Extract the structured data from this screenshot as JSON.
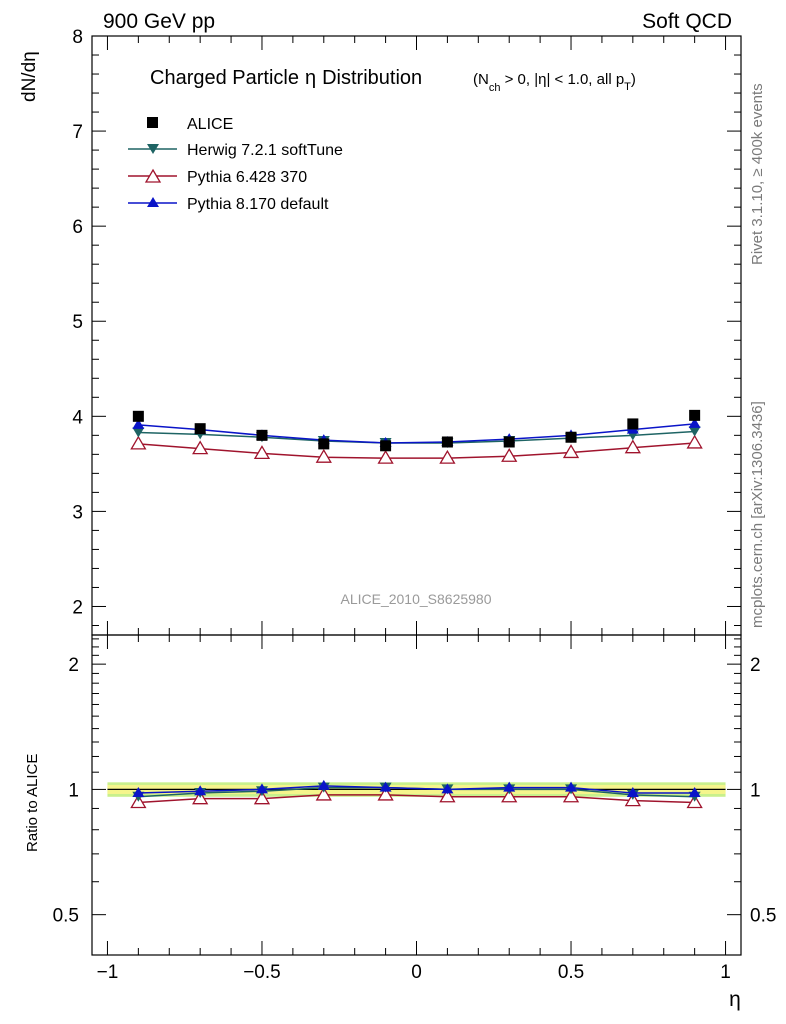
{
  "header": {
    "left": "900 GeV pp",
    "right": "Soft QCD"
  },
  "side_labels": {
    "rivet": "Rivet 3.1.10, ≥ 400k events",
    "mcplots": "mcplots.cern.ch [arXiv:1306.3436]"
  },
  "colors": {
    "ALICE": "#000000",
    "Herwig": "#1e6464",
    "Pythia6": "#a0142d",
    "Pythia8": "#0a14c8",
    "band_inner": "#f5f58c",
    "band_outer": "#c8f08c"
  },
  "chart_data": [
    {
      "id": "main",
      "type": "line",
      "title": "Charged Particle η Distribution",
      "subtitle": "(N_ch > 0, |η| < 1.0, all p_T)",
      "title_main": "Charged Particle",
      "title_eta": "η",
      "title_rest": "Distribution",
      "cut_open": "(N",
      "cut_sub_ch": "ch",
      "cut_mid": " > 0, |η| < 1.0, all p",
      "cut_sub_T": "T",
      "cut_close": ")",
      "xlabel": "η",
      "ylabel": "dN/dη",
      "xlim": [
        -1.05,
        1.05
      ],
      "ylim": [
        1.7,
        8.0
      ],
      "yticks": [
        2,
        3,
        4,
        5,
        6,
        7,
        8
      ],
      "watermark": "ALICE_2010_S8625980",
      "x": [
        -0.9,
        -0.7,
        -0.5,
        -0.3,
        -0.1,
        0.1,
        0.3,
        0.5,
        0.7,
        0.9
      ],
      "series": [
        {
          "name": "ALICE",
          "key": "ALICE",
          "marker": "square",
          "line": false,
          "values": [
            4.0,
            3.87,
            3.8,
            3.71,
            3.69,
            3.73,
            3.73,
            3.78,
            3.92,
            4.01
          ]
        },
        {
          "name": "Herwig 7.2.1 softTune",
          "key": "Herwig",
          "marker": "triangle-down",
          "line": true,
          "values": [
            3.83,
            3.81,
            3.78,
            3.74,
            3.72,
            3.72,
            3.74,
            3.77,
            3.8,
            3.84
          ]
        },
        {
          "name": "Pythia 6.428 370",
          "key": "Pythia6",
          "marker": "triangle-up-open",
          "line": true,
          "values": [
            3.71,
            3.66,
            3.61,
            3.57,
            3.56,
            3.56,
            3.58,
            3.62,
            3.67,
            3.72
          ]
        },
        {
          "name": "Pythia 8.170 default",
          "key": "Pythia8",
          "marker": "triangle-up",
          "line": true,
          "values": [
            3.91,
            3.86,
            3.8,
            3.75,
            3.72,
            3.73,
            3.76,
            3.8,
            3.86,
            3.92
          ]
        }
      ]
    },
    {
      "id": "ratio",
      "type": "line",
      "xlabel": "η",
      "ylabel": "Ratio to ALICE",
      "xlim": [
        -1.05,
        1.05
      ],
      "ylim": [
        0.4,
        2.35
      ],
      "yscale": "log",
      "yticks": [
        0.5,
        1,
        2
      ],
      "yticklabels": [
        "0.5",
        "1",
        "2"
      ],
      "xticks": [
        -1,
        -0.5,
        0,
        0.5,
        1
      ],
      "xticklabels": [
        "−1",
        "−0.5",
        "0",
        "0.5",
        "1"
      ],
      "band": {
        "inner": 0.025,
        "outer": 0.04
      },
      "x": [
        -0.9,
        -0.7,
        -0.5,
        -0.3,
        -0.1,
        0.1,
        0.3,
        0.5,
        0.7,
        0.9
      ],
      "series": [
        {
          "name": "Herwig 7.2.1 softTune",
          "key": "Herwig",
          "marker": "triangle-down",
          "values": [
            0.96,
            0.98,
            0.99,
            1.01,
            1.01,
            1.0,
            1.0,
            1.0,
            0.97,
            0.96
          ]
        },
        {
          "name": "Pythia 6.428 370",
          "key": "Pythia6",
          "marker": "triangle-up-open",
          "values": [
            0.93,
            0.95,
            0.95,
            0.97,
            0.97,
            0.96,
            0.96,
            0.96,
            0.94,
            0.93
          ]
        },
        {
          "name": "Pythia 8.170 default",
          "key": "Pythia8",
          "marker": "triangle-up",
          "values": [
            0.98,
            0.99,
            1.0,
            1.02,
            1.01,
            1.0,
            1.01,
            1.01,
            0.98,
            0.98
          ]
        }
      ]
    }
  ]
}
